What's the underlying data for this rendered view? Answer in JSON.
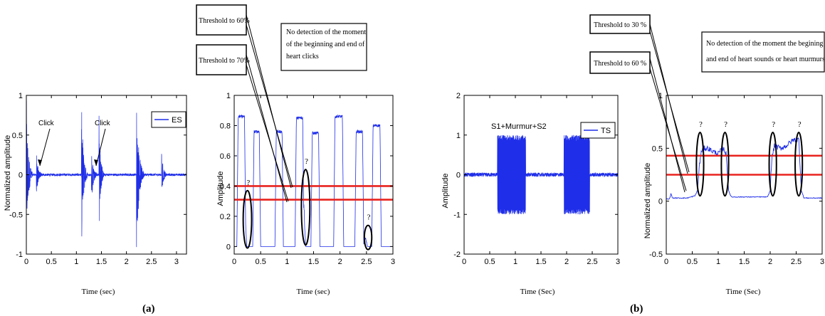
{
  "figure": {
    "panel_a_label": "(a)",
    "panel_b_label": "(b)"
  },
  "callouts": {
    "a_threshold_60": "Threshold to 60%",
    "a_threshold_70": "Threshold to 70%",
    "a_note": [
      "No detection of the moment",
      "of the beginning and end of",
      "heart clicks"
    ],
    "b_threshold_30": "Threshold to 30 %",
    "b_threshold_60": "Threshold to 60 %",
    "b_note": [
      "No detection of the moment the begining",
      "and end of heart sounds or heart murmurs"
    ]
  },
  "colors": {
    "signal": "#1f2ee8",
    "threshold": "#e8231e",
    "axis": "#000000"
  },
  "chart_data": [
    {
      "type": "line",
      "id": "a1",
      "xlabel": "Time (sec)",
      "ylabel": "Normalized amplitude",
      "xlim": [
        0,
        3.2
      ],
      "ylim": [
        -1,
        1
      ],
      "xticks": [
        0,
        0.5,
        1,
        1.5,
        2,
        2.5,
        3
      ],
      "xtick_labels": [
        "0",
        "0.5",
        "1",
        "1.5",
        "2",
        "2.5",
        "3"
      ],
      "yticks": [
        -1,
        -0.5,
        0,
        0.5,
        1
      ],
      "ytick_labels": [
        "-1",
        "-0.5",
        "0",
        "0.5",
        "1"
      ],
      "legend": [
        "ES"
      ],
      "legend_position": "top-right",
      "annotations": [
        "Click",
        "Click"
      ],
      "bursts": [
        {
          "start": 0.0,
          "end": 0.12,
          "amp": 1.0
        },
        {
          "start": 0.2,
          "end": 0.32,
          "amp": 0.3
        },
        {
          "start": 1.1,
          "end": 1.22,
          "amp": 1.0
        },
        {
          "start": 1.3,
          "end": 1.42,
          "amp": 0.35
        },
        {
          "start": 1.45,
          "end": 1.55,
          "amp": 0.85
        },
        {
          "start": 2.2,
          "end": 2.35,
          "amp": 1.0
        },
        {
          "start": 2.7,
          "end": 2.82,
          "amp": 0.3
        }
      ],
      "noise": 0.015
    },
    {
      "type": "line",
      "id": "a2",
      "xlabel": "Time (sec)",
      "ylabel": "Amplitude",
      "xlim": [
        0,
        3
      ],
      "ylim": [
        -0.05,
        1
      ],
      "xticks": [
        0,
        0.5,
        1,
        1.5,
        2,
        2.5,
        3
      ],
      "xtick_labels": [
        "0",
        "0.5",
        "1",
        "1.5",
        "2",
        "2.5",
        "3"
      ],
      "yticks": [
        0,
        0.2,
        0.4,
        0.6,
        0.8,
        1
      ],
      "ytick_labels": [
        "0",
        "0.2",
        "0.4",
        "0.6",
        "0.8",
        "1"
      ],
      "envelope_pulses": [
        {
          "start": 0.05,
          "end": 0.22,
          "amp": 0.86
        },
        {
          "start": 0.35,
          "end": 0.5,
          "amp": 0.76
        },
        {
          "start": 0.77,
          "end": 0.93,
          "amp": 0.76
        },
        {
          "start": 1.15,
          "end": 1.32,
          "amp": 0.85
        },
        {
          "start": 1.45,
          "end": 1.62,
          "amp": 0.75
        },
        {
          "start": 1.88,
          "end": 2.07,
          "amp": 0.86
        },
        {
          "start": 2.28,
          "end": 2.45,
          "amp": 0.76
        },
        {
          "start": 2.6,
          "end": 2.78,
          "amp": 0.8
        }
      ],
      "small_bumps": [
        {
          "x": 0.2,
          "amp": 0.27
        },
        {
          "x": 1.31,
          "amp": 0.38
        },
        {
          "x": 2.48,
          "amp": 0.07
        }
      ],
      "thresholds": [
        0.4,
        0.31
      ],
      "markers": [
        {
          "label": "?",
          "cx": 0.25,
          "cy": 0.18,
          "rx": 0.08,
          "ry": 0.19
        },
        {
          "label": "?",
          "cx": 1.35,
          "cy": 0.26,
          "rx": 0.08,
          "ry": 0.25
        },
        {
          "label": "?",
          "cx": 2.53,
          "cy": 0.06,
          "rx": 0.07,
          "ry": 0.08
        }
      ]
    },
    {
      "type": "line",
      "id": "b1",
      "xlabel": "Time (Sec)",
      "ylabel": "Amplitude",
      "xlim": [
        0,
        3
      ],
      "ylim": [
        -2,
        2
      ],
      "xticks": [
        0,
        0.5,
        1,
        1.5,
        2,
        2.5,
        3
      ],
      "xtick_labels": [
        "0",
        "0.5",
        "1",
        "1.5",
        "2",
        "2.5",
        "3"
      ],
      "yticks": [
        -2,
        -1,
        0,
        1,
        2
      ],
      "ytick_labels": [
        "-2",
        "-1",
        "0",
        "1",
        "2"
      ],
      "legend": [
        "TS"
      ],
      "legend_position": "top-right",
      "annotations": [
        "S1+Murmur+S2"
      ],
      "bursts": [
        {
          "start": 0.65,
          "end": 1.2,
          "amp": 1.0
        },
        {
          "start": 1.95,
          "end": 2.45,
          "amp": 1.0
        }
      ],
      "noise": 0.05
    },
    {
      "type": "line",
      "id": "b2",
      "xlabel": "Time (Sec)",
      "ylabel": "Normalized amplitude",
      "xlim": [
        0,
        3
      ],
      "ylim": [
        -0.5,
        1
      ],
      "xticks": [
        0,
        0.5,
        1,
        1.5,
        2,
        2.5,
        3
      ],
      "xtick_labels": [
        "0",
        "0.5",
        "1",
        "1.5",
        "2",
        "2.5",
        "3"
      ],
      "yticks": [
        -0.5,
        0,
        0.5,
        1
      ],
      "ytick_labels": [
        "-0.5",
        "0",
        "0.5",
        "1"
      ],
      "thresholds": [
        0.43,
        0.25
      ],
      "markers": [
        {
          "label": "?",
          "cx": 0.65,
          "cy": 0.35,
          "rx": 0.07,
          "ry": 0.3
        },
        {
          "label": "?",
          "cx": 1.13,
          "cy": 0.35,
          "rx": 0.07,
          "ry": 0.3
        },
        {
          "label": "?",
          "cx": 2.05,
          "cy": 0.35,
          "rx": 0.07,
          "ry": 0.3
        },
        {
          "label": "?",
          "cx": 2.55,
          "cy": 0.35,
          "rx": 0.07,
          "ry": 0.3
        }
      ]
    }
  ]
}
